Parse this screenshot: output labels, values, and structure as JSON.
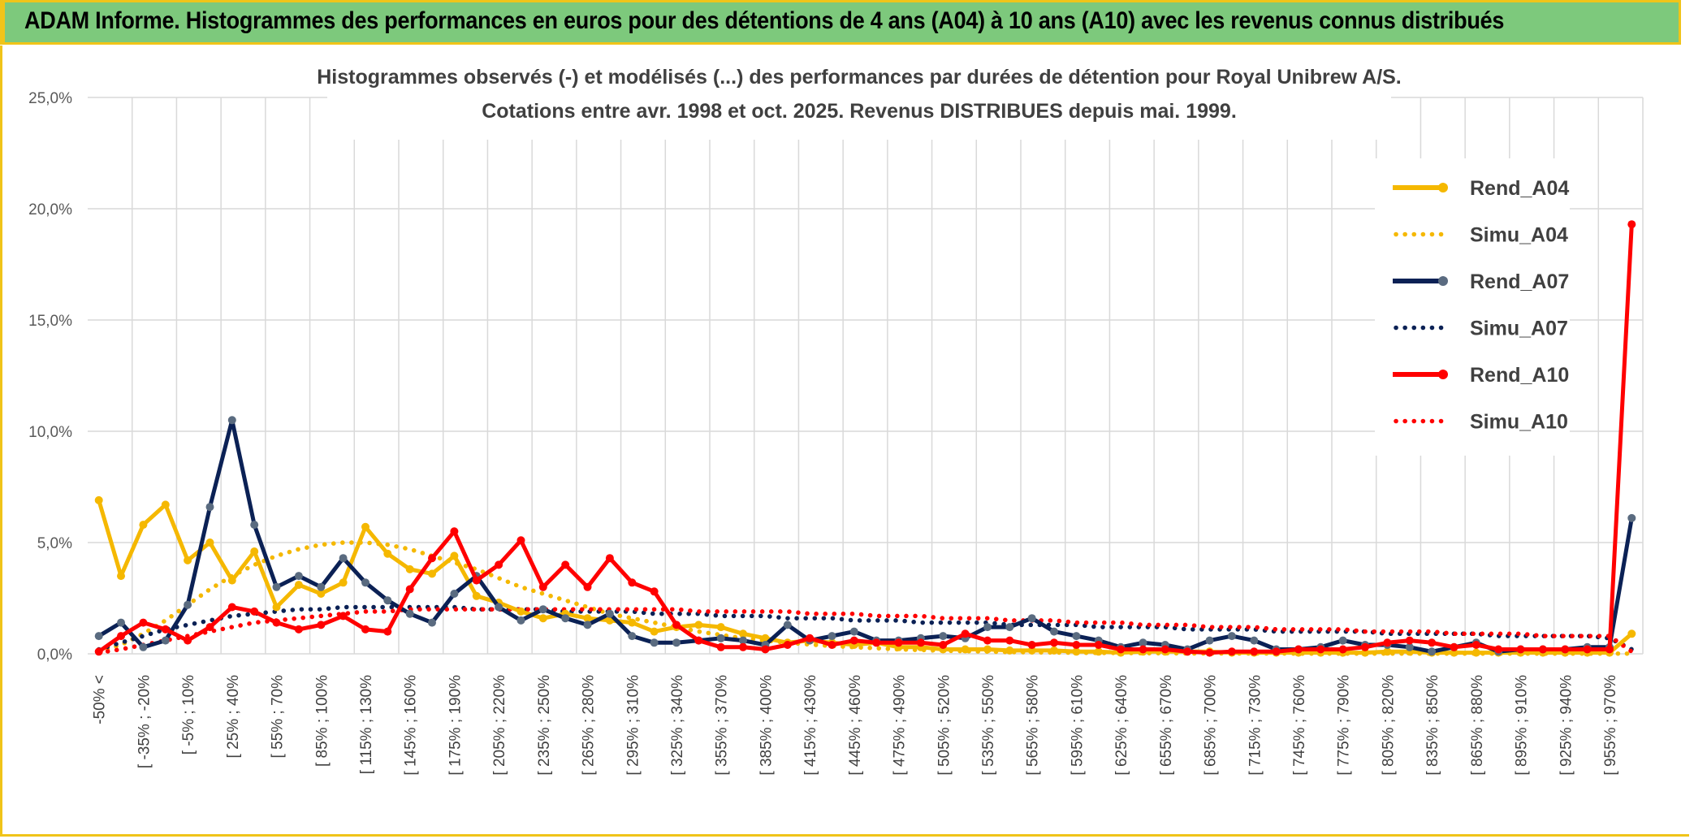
{
  "banner": {
    "title": "ADAM Informe. Histogrammes des performances en euros pour des détentions de 4 ans (A04) à 10 ans (A10) avec les revenus connus distribués"
  },
  "colors": {
    "a04": "#f5b800",
    "a07": "#0b2155",
    "a07_marker": "#5a6b80",
    "a10": "#ff0000",
    "grid": "#d9d9d9",
    "banner": "#7dc97c",
    "border": "#f0c419"
  },
  "chart_data": {
    "type": "line",
    "title": "Histogrammes observés (-) et modélisés (...) des performances par durées de détention pour Royal Unibrew A/S.",
    "subtitle": "Cotations entre avr. 1998 et oct. 2025. Revenus DISTRIBUES depuis mai. 1999.",
    "xlabel": "",
    "ylabel": "",
    "ylim": [
      0,
      25
    ],
    "yticks": [
      "0,0%",
      "5,0%",
      "10,0%",
      "15,0%",
      "20,0%",
      "25,0%"
    ],
    "grid": true,
    "legend_position": "top-right",
    "x_tick_labels": [
      "-50% <",
      "[ -35% ; -20%",
      "[ -5% ; 10%",
      "[ 25% ; 40%",
      "[ 55% ; 70%",
      "[ 85% ; 100%",
      "[ 115% ; 130%",
      "[ 145% ; 160%",
      "[ 175% ; 190%",
      "[ 205% ; 220%",
      "[ 235% ; 250%",
      "[ 265% ; 280%",
      "[ 295% ; 310%",
      "[ 325% ; 340%",
      "[ 355% ; 370%",
      "[ 385% ; 400%",
      "[ 415% ; 430%",
      "[ 445% ; 460%",
      "[ 475% ; 490%",
      "[ 505% ; 520%",
      "[ 535% ; 550%",
      "[ 565% ; 580%",
      "[ 595% ; 610%",
      "[ 625% ; 640%",
      "[ 655% ; 670%",
      "[ 685% ; 700%",
      "[ 715% ; 730%",
      "[ 745% ; 760%",
      "[ 775% ; 790%",
      "[ 805% ; 820%",
      "[ 835% ; 850%",
      "[ 865% ; 880%",
      "[ 895% ; 910%",
      "[ 925% ; 940%",
      "[ 955% ; 970%"
    ],
    "x_tick_every": 2,
    "n_points": 70,
    "series": [
      {
        "name": "Rend_A04",
        "style": "solid",
        "color": "#f5b800",
        "values": [
          6.9,
          3.5,
          5.8,
          6.7,
          4.2,
          5.0,
          3.3,
          4.6,
          2.1,
          3.1,
          2.7,
          3.2,
          5.7,
          4.5,
          3.8,
          3.6,
          4.4,
          2.6,
          2.3,
          1.9,
          1.6,
          1.8,
          1.6,
          1.5,
          1.4,
          1.0,
          1.2,
          1.3,
          1.2,
          0.9,
          0.7,
          0.5,
          0.6,
          0.5,
          0.4,
          0.5,
          0.3,
          0.3,
          0.2,
          0.2,
          0.2,
          0.15,
          0.15,
          0.15,
          0.1,
          0.1,
          0.05,
          0.1,
          0.1,
          0.1,
          0.1,
          0.05,
          0.05,
          0.05,
          0.05,
          0.05,
          0.05,
          0.05,
          0.1,
          0.1,
          0.05,
          0.05,
          0.05,
          0.05,
          0.05,
          0.05,
          0.05,
          0.05,
          0.05,
          0.9
        ]
      },
      {
        "name": "Simu_A04",
        "style": "dotted",
        "color": "#f5b800",
        "values": [
          0.1,
          0.4,
          0.9,
          1.5,
          2.2,
          2.9,
          3.5,
          4.0,
          4.4,
          4.7,
          4.9,
          5.0,
          5.0,
          4.9,
          4.7,
          4.4,
          4.1,
          3.8,
          3.4,
          3.0,
          2.7,
          2.4,
          2.1,
          1.8,
          1.6,
          1.4,
          1.2,
          1.0,
          0.85,
          0.7,
          0.6,
          0.5,
          0.42,
          0.35,
          0.3,
          0.25,
          0.2,
          0.17,
          0.14,
          0.12,
          0.1,
          0.08,
          0.07,
          0.06,
          0.05,
          0.04,
          0.04,
          0.03,
          0.03,
          0.02,
          0.02,
          0.02,
          0.02,
          0.02,
          0.01,
          0.01,
          0.01,
          0.01,
          0.01,
          0.01,
          0.01,
          0.01,
          0.01,
          0.01,
          0.01,
          0.01,
          0.01,
          0.01,
          0.01,
          0.01
        ]
      },
      {
        "name": "Rend_A07",
        "style": "solid",
        "color": "#0b2155",
        "values": [
          0.8,
          1.4,
          0.3,
          0.6,
          2.2,
          6.6,
          10.5,
          5.8,
          3.0,
          3.5,
          3.0,
          4.3,
          3.2,
          2.4,
          1.8,
          1.4,
          2.7,
          3.5,
          2.1,
          1.5,
          2.0,
          1.6,
          1.3,
          1.8,
          0.8,
          0.5,
          0.5,
          0.6,
          0.7,
          0.6,
          0.4,
          1.3,
          0.6,
          0.8,
          1.0,
          0.6,
          0.6,
          0.7,
          0.8,
          0.7,
          1.2,
          1.2,
          1.6,
          1.0,
          0.8,
          0.6,
          0.3,
          0.5,
          0.4,
          0.2,
          0.6,
          0.8,
          0.6,
          0.2,
          0.2,
          0.3,
          0.6,
          0.4,
          0.4,
          0.3,
          0.1,
          0.3,
          0.5,
          0.1,
          0.2,
          0.2,
          0.2,
          0.3,
          0.3,
          6.1
        ]
      },
      {
        "name": "Simu_A07",
        "style": "dotted",
        "color": "#0b2155",
        "values": [
          0.2,
          0.5,
          0.8,
          1.1,
          1.3,
          1.5,
          1.7,
          1.8,
          1.9,
          2.0,
          2.0,
          2.1,
          2.1,
          2.1,
          2.1,
          2.1,
          2.1,
          2.0,
          2.0,
          2.0,
          2.0,
          1.9,
          1.9,
          1.9,
          1.9,
          1.8,
          1.8,
          1.8,
          1.7,
          1.7,
          1.7,
          1.6,
          1.6,
          1.6,
          1.5,
          1.5,
          1.5,
          1.4,
          1.4,
          1.4,
          1.4,
          1.3,
          1.3,
          1.3,
          1.3,
          1.2,
          1.2,
          1.2,
          1.2,
          1.1,
          1.1,
          1.1,
          1.1,
          1.0,
          1.0,
          1.0,
          1.0,
          1.0,
          0.9,
          0.9,
          0.9,
          0.9,
          0.9,
          0.8,
          0.8,
          0.8,
          0.8,
          0.8,
          0.7,
          0.2
        ]
      },
      {
        "name": "Rend_A10",
        "style": "solid",
        "color": "#ff0000",
        "values": [
          0.1,
          0.8,
          1.4,
          1.1,
          0.6,
          1.2,
          2.1,
          1.9,
          1.4,
          1.1,
          1.3,
          1.7,
          1.1,
          1.0,
          2.9,
          4.3,
          5.5,
          3.3,
          4.0,
          5.1,
          3.0,
          4.0,
          3.0,
          4.3,
          3.2,
          2.8,
          1.3,
          0.6,
          0.3,
          0.3,
          0.2,
          0.4,
          0.7,
          0.4,
          0.6,
          0.5,
          0.5,
          0.5,
          0.4,
          0.9,
          0.6,
          0.6,
          0.4,
          0.5,
          0.4,
          0.4,
          0.2,
          0.2,
          0.2,
          0.1,
          0.05,
          0.1,
          0.1,
          0.1,
          0.2,
          0.2,
          0.2,
          0.3,
          0.5,
          0.6,
          0.5,
          0.3,
          0.4,
          0.2,
          0.2,
          0.2,
          0.2,
          0.2,
          0.2,
          19.3
        ]
      },
      {
        "name": "Simu_A10",
        "style": "dotted",
        "color": "#ff0000",
        "values": [
          0.05,
          0.2,
          0.4,
          0.6,
          0.8,
          1.0,
          1.2,
          1.4,
          1.5,
          1.6,
          1.7,
          1.8,
          1.9,
          1.9,
          2.0,
          2.0,
          2.0,
          2.0,
          2.0,
          2.0,
          2.0,
          2.0,
          2.0,
          2.0,
          2.0,
          2.0,
          2.0,
          1.9,
          1.9,
          1.9,
          1.9,
          1.9,
          1.8,
          1.8,
          1.8,
          1.7,
          1.7,
          1.7,
          1.6,
          1.6,
          1.6,
          1.5,
          1.5,
          1.5,
          1.4,
          1.4,
          1.4,
          1.3,
          1.3,
          1.3,
          1.2,
          1.2,
          1.2,
          1.1,
          1.1,
          1.1,
          1.1,
          1.0,
          1.0,
          1.0,
          1.0,
          0.9,
          0.9,
          0.9,
          0.9,
          0.8,
          0.8,
          0.8,
          0.8,
          0.1
        ]
      }
    ]
  }
}
